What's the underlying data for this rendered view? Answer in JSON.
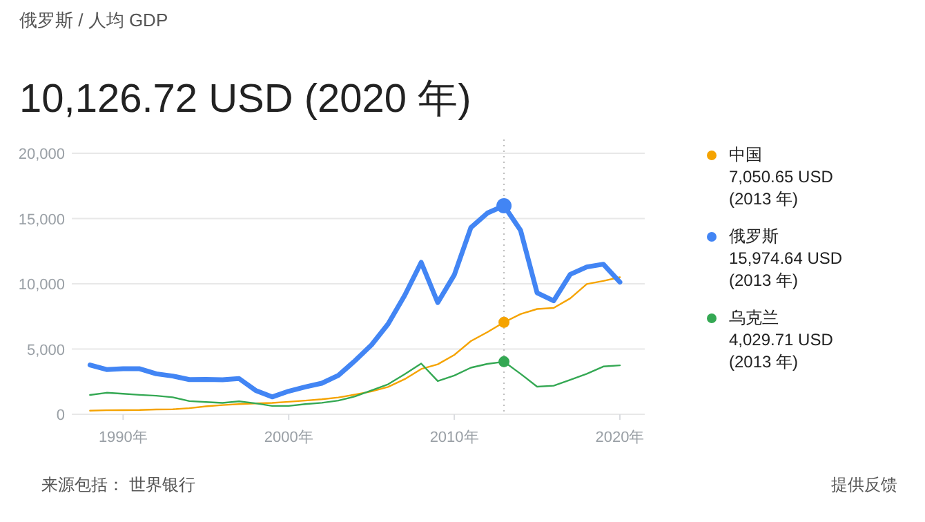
{
  "chart_data": {
    "type": "line",
    "subtitle": "俄罗斯 / 人均 GDP",
    "title": "10,126.72 USD (2020 年)",
    "x": [
      1988,
      1989,
      1990,
      1991,
      1992,
      1993,
      1994,
      1995,
      1996,
      1997,
      1998,
      1999,
      2000,
      2001,
      2002,
      2003,
      2004,
      2005,
      2006,
      2007,
      2008,
      2009,
      2010,
      2011,
      2012,
      2013,
      2014,
      2015,
      2016,
      2017,
      2018,
      2019,
      2020
    ],
    "series": [
      {
        "name": "中国",
        "color": "#f5a300",
        "values": [
          280,
          310,
          320,
          330,
          370,
          380,
          470,
          610,
          710,
          780,
          830,
          870,
          960,
          1050,
          1150,
          1290,
          1510,
          1750,
          2100,
          2690,
          3470,
          3830,
          4550,
          5610,
          6300,
          7050.65,
          7680,
          8070,
          8150,
          8880,
          9980,
          10220,
          10500
        ]
      },
      {
        "name": "俄罗斯",
        "color": "#4285f4",
        "values": [
          3780,
          3430,
          3490,
          3490,
          3100,
          2930,
          2660,
          2670,
          2640,
          2740,
          1830,
          1330,
          1770,
          2100,
          2380,
          2980,
          4100,
          5320,
          6920,
          9100,
          11640,
          8560,
          10680,
          14310,
          15420,
          15974.64,
          14100,
          9310,
          8700,
          10720,
          11290,
          11500,
          10126.72
        ]
      },
      {
        "name": "乌克兰",
        "color": "#34a853",
        "values": [
          1480,
          1650,
          1570,
          1490,
          1420,
          1300,
          1010,
          940,
          870,
          990,
          840,
          640,
          640,
          780,
          880,
          1050,
          1370,
          1830,
          2300,
          3070,
          3890,
          2550,
          2970,
          3570,
          3860,
          4029.71,
          3100,
          2120,
          2190,
          2640,
          3100,
          3660,
          3750
        ]
      }
    ],
    "xlim": [
      1986.9,
      2021.5
    ],
    "ylim": [
      0,
      20000
    ],
    "xticks": [
      {
        "value": 1990,
        "label": "1990年"
      },
      {
        "value": 2000,
        "label": "2000年"
      },
      {
        "value": 2010,
        "label": "2010年"
      },
      {
        "value": 2020,
        "label": "2020年"
      }
    ],
    "yticks": [
      {
        "value": 0,
        "label": "0"
      },
      {
        "value": 5000,
        "label": "5,000"
      },
      {
        "value": 10000,
        "label": "10,000"
      },
      {
        "value": 15000,
        "label": "15,000"
      },
      {
        "value": 20000,
        "label": "20,000"
      }
    ],
    "grid": "y",
    "legend": "right",
    "marker": "none",
    "line_style": "solid",
    "ref_lines": [
      {
        "axis": "x",
        "value": 2013,
        "line_style": "dotted",
        "color": "#bbbbbb"
      }
    ],
    "annotations": [
      "7,050.65 USD (2013 年)",
      "15,974.64 USD (2013 年)",
      "4,029.71 USD (2013 年)",
      "来源包括： 世界银行",
      "提供反馈"
    ]
  }
}
